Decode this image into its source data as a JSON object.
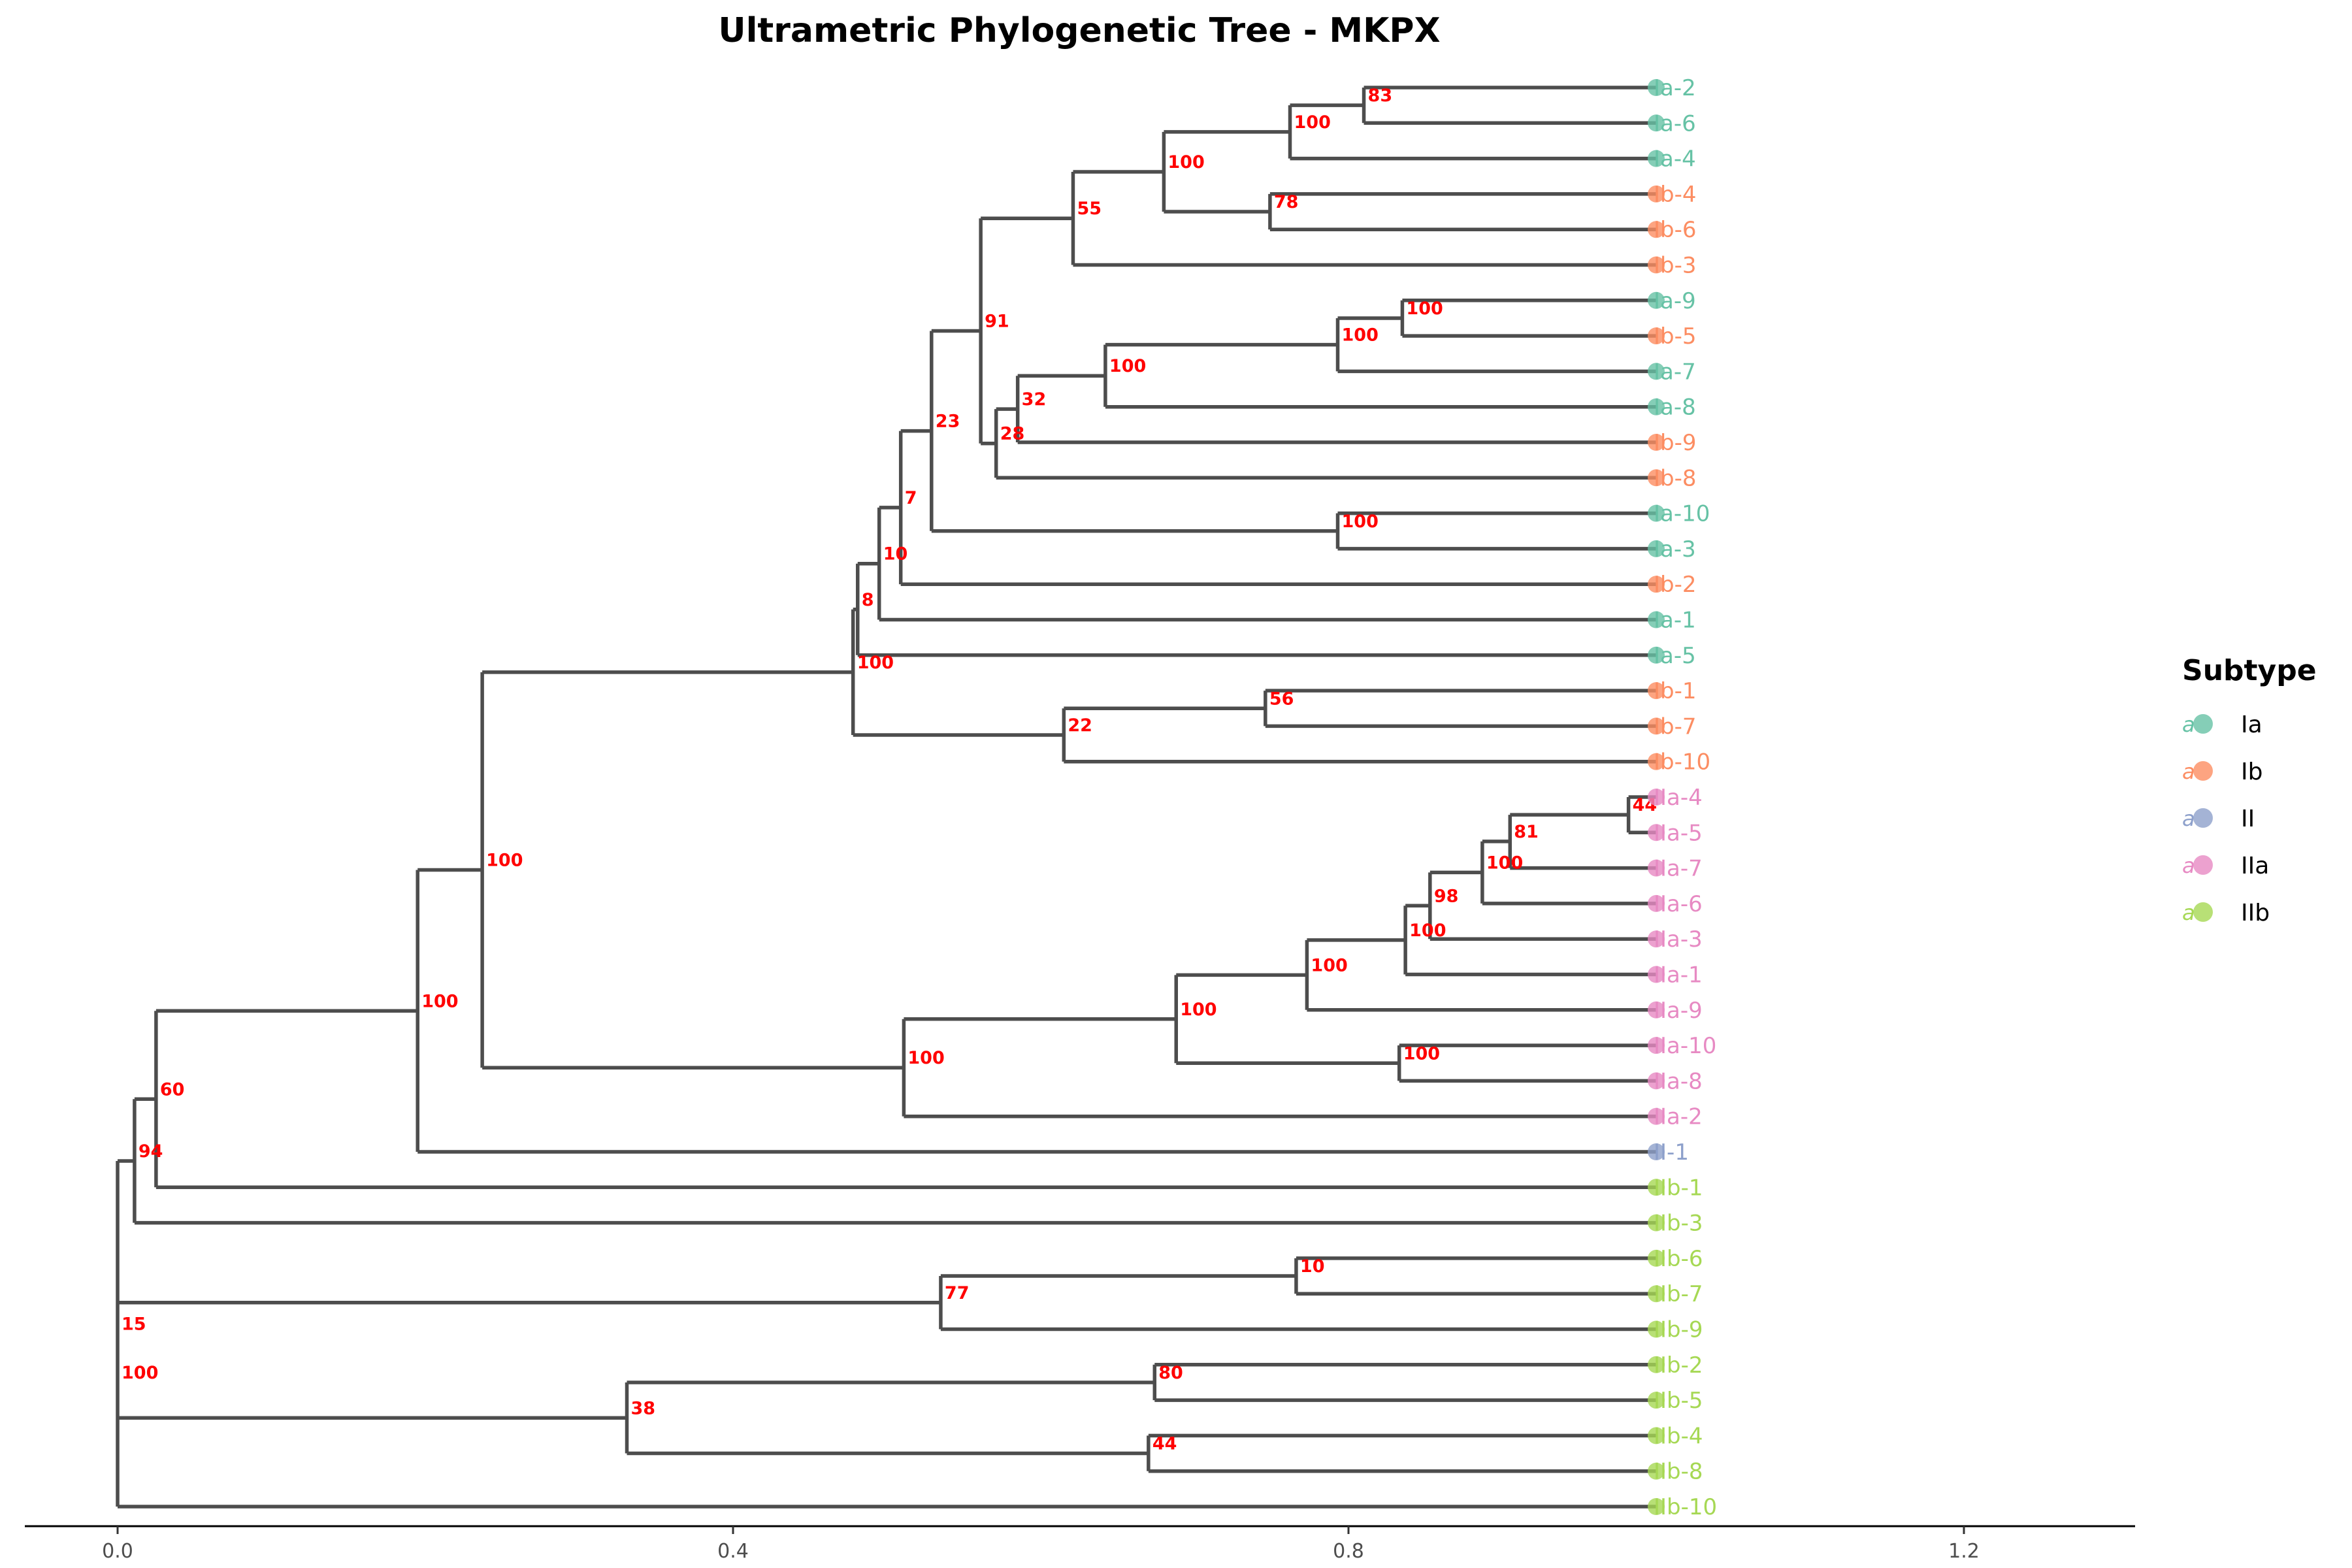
{
  "title": "Ultrametric Phylogenetic Tree - MKPX",
  "axis": {
    "ticks": [
      0.0,
      0.4,
      0.8,
      1.2
    ],
    "tick_labels": [
      "0.0",
      "0.4",
      "0.8",
      "1.2"
    ],
    "range": [
      -0.06,
      1.31
    ]
  },
  "legend": {
    "title": "Subtype",
    "glyph": "a",
    "items": [
      {
        "label": "Ia",
        "color": "#66c2a5"
      },
      {
        "label": "Ib",
        "color": "#fc8d62"
      },
      {
        "label": "II",
        "color": "#8da0cb"
      },
      {
        "label": "IIa",
        "color": "#e78ac3"
      },
      {
        "label": "IIb",
        "color": "#a6d854"
      }
    ]
  },
  "colors": {
    "Ia": "#66c2a5",
    "Ib": "#fc8d62",
    "II": "#8da0cb",
    "IIa": "#e78ac3",
    "IIb": "#a6d854",
    "branch": "#4d4d4d",
    "bootstrap": "#ff0000"
  },
  "tips": [
    {
      "label": "Ia-2",
      "subtype": "Ia"
    },
    {
      "label": "Ia-6",
      "subtype": "Ia"
    },
    {
      "label": "Ia-4",
      "subtype": "Ia"
    },
    {
      "label": "Ib-4",
      "subtype": "Ib"
    },
    {
      "label": "Ib-6",
      "subtype": "Ib"
    },
    {
      "label": "Ib-3",
      "subtype": "Ib"
    },
    {
      "label": "Ia-9",
      "subtype": "Ia"
    },
    {
      "label": "Ib-5",
      "subtype": "Ib"
    },
    {
      "label": "Ia-7",
      "subtype": "Ia"
    },
    {
      "label": "Ia-8",
      "subtype": "Ia"
    },
    {
      "label": "Ib-9",
      "subtype": "Ib"
    },
    {
      "label": "Ib-8",
      "subtype": "Ib"
    },
    {
      "label": "Ia-10",
      "subtype": "Ia"
    },
    {
      "label": "Ia-3",
      "subtype": "Ia"
    },
    {
      "label": "Ib-2",
      "subtype": "Ib"
    },
    {
      "label": "Ia-1",
      "subtype": "Ia"
    },
    {
      "label": "Ia-5",
      "subtype": "Ia"
    },
    {
      "label": "Ib-1",
      "subtype": "Ib"
    },
    {
      "label": "Ib-7",
      "subtype": "Ib"
    },
    {
      "label": "Ib-10",
      "subtype": "Ib"
    },
    {
      "label": "IIa-4",
      "subtype": "IIa"
    },
    {
      "label": "IIa-5",
      "subtype": "IIa"
    },
    {
      "label": "IIa-7",
      "subtype": "IIa"
    },
    {
      "label": "IIa-6",
      "subtype": "IIa"
    },
    {
      "label": "IIa-3",
      "subtype": "IIa"
    },
    {
      "label": "IIa-1",
      "subtype": "IIa"
    },
    {
      "label": "IIa-9",
      "subtype": "IIa"
    },
    {
      "label": "IIa-10",
      "subtype": "IIa"
    },
    {
      "label": "IIa-8",
      "subtype": "IIa"
    },
    {
      "label": "IIa-2",
      "subtype": "IIa"
    },
    {
      "label": "II-1",
      "subtype": "II"
    },
    {
      "label": "IIb-1",
      "subtype": "IIb"
    },
    {
      "label": "IIb-3",
      "subtype": "IIb"
    },
    {
      "label": "IIb-6",
      "subtype": "IIb"
    },
    {
      "label": "IIb-7",
      "subtype": "IIb"
    },
    {
      "label": "IIb-9",
      "subtype": "IIb"
    },
    {
      "label": "IIb-2",
      "subtype": "IIb"
    },
    {
      "label": "IIb-5",
      "subtype": "IIb"
    },
    {
      "label": "IIb-4",
      "subtype": "IIb"
    },
    {
      "label": "IIb-8",
      "subtype": "IIb"
    },
    {
      "label": "IIb-10",
      "subtype": "IIb"
    }
  ],
  "nodes": [
    {
      "x": 0.81,
      "children": [
        "t0",
        "t1"
      ],
      "bootstrap": "83"
    },
    {
      "x": 0.762,
      "children": [
        "n0",
        "t2"
      ],
      "bootstrap": "100"
    },
    {
      "x": 0.749,
      "children": [
        "t3",
        "t4"
      ],
      "bootstrap": "78"
    },
    {
      "x": 0.68,
      "children": [
        "n1",
        "n2"
      ],
      "bootstrap": "100"
    },
    {
      "x": 0.621,
      "children": [
        "n3",
        "t5"
      ],
      "bootstrap": "55"
    },
    {
      "x": 0.835,
      "children": [
        "t6",
        "t7"
      ],
      "bootstrap": "100"
    },
    {
      "x": 0.793,
      "children": [
        "n5",
        "t8"
      ],
      "bootstrap": "100"
    },
    {
      "x": 0.642,
      "children": [
        "n6",
        "t9"
      ],
      "bootstrap": "100"
    },
    {
      "x": 0.585,
      "children": [
        "n7",
        "t10"
      ],
      "bootstrap": "32"
    },
    {
      "x": 0.571,
      "children": [
        "n8",
        "t11"
      ],
      "bootstrap": "28"
    },
    {
      "x": 0.561,
      "children": [
        "n4",
        "n9"
      ],
      "bootstrap": "91"
    },
    {
      "x": 0.793,
      "children": [
        "t12",
        "t13"
      ],
      "bootstrap": "100"
    },
    {
      "x": 0.529,
      "children": [
        "n10",
        "n11"
      ],
      "bootstrap": "23"
    },
    {
      "x": 0.509,
      "children": [
        "n12",
        "t14"
      ],
      "bootstrap": "7"
    },
    {
      "x": 0.495,
      "children": [
        "n13",
        "t15"
      ],
      "bootstrap": "10"
    },
    {
      "x": 0.481,
      "children": [
        "n14",
        "t16"
      ],
      "bootstrap": "8"
    },
    {
      "x": 0.746,
      "children": [
        "t17",
        "t18"
      ],
      "bootstrap": "56"
    },
    {
      "x": 0.615,
      "children": [
        "n16",
        "t19"
      ],
      "bootstrap": "22"
    },
    {
      "x": 0.478,
      "children": [
        "n15",
        "n17"
      ],
      "bootstrap": "100"
    },
    {
      "x": 0.982,
      "children": [
        "t20",
        "t21"
      ],
      "bootstrap": "44"
    },
    {
      "x": 0.905,
      "children": [
        "n19",
        "t22"
      ],
      "bootstrap": "81"
    },
    {
      "x": 0.887,
      "children": [
        "n20",
        "t23"
      ],
      "bootstrap": "100"
    },
    {
      "x": 0.853,
      "children": [
        "n21",
        "t24"
      ],
      "bootstrap": "98"
    },
    {
      "x": 0.837,
      "children": [
        "n22",
        "t25"
      ],
      "bootstrap": "100"
    },
    {
      "x": 0.773,
      "children": [
        "n23",
        "t26"
      ],
      "bootstrap": "100"
    },
    {
      "x": 0.833,
      "children": [
        "t27",
        "t28"
      ],
      "bootstrap": "100"
    },
    {
      "x": 0.688,
      "children": [
        "n24",
        "n25"
      ],
      "bootstrap": "100"
    },
    {
      "x": 0.511,
      "children": [
        "n26",
        "t29"
      ],
      "bootstrap": "100"
    },
    {
      "x": 0.237,
      "children": [
        "n18",
        "n27"
      ],
      "bootstrap": "100"
    },
    {
      "x": 0.195,
      "children": [
        "n28",
        "t30"
      ],
      "bootstrap": "100"
    },
    {
      "x": 0.025,
      "children": [
        "n29",
        "t31"
      ],
      "bootstrap": "60"
    },
    {
      "x": 0.011,
      "children": [
        "n30",
        "t32"
      ],
      "bootstrap": "94"
    },
    {
      "x": 0.766,
      "children": [
        "t33",
        "t34"
      ],
      "bootstrap": "10"
    },
    {
      "x": 0.535,
      "children": [
        "n32",
        "t35"
      ],
      "bootstrap": "77"
    },
    {
      "x": 0.674,
      "children": [
        "t36",
        "t37"
      ],
      "bootstrap": "80"
    },
    {
      "x": 0.67,
      "children": [
        "t38",
        "t39"
      ],
      "bootstrap": "44"
    },
    {
      "x": 0.331,
      "children": [
        "n34",
        "n35"
      ],
      "bootstrap": "38"
    },
    {
      "x": 0.0,
      "children": [
        "n31",
        "n33",
        "n36",
        "t40"
      ],
      "bootstrap": "15"
    }
  ],
  "root_extra_bootstrap": "100"
}
